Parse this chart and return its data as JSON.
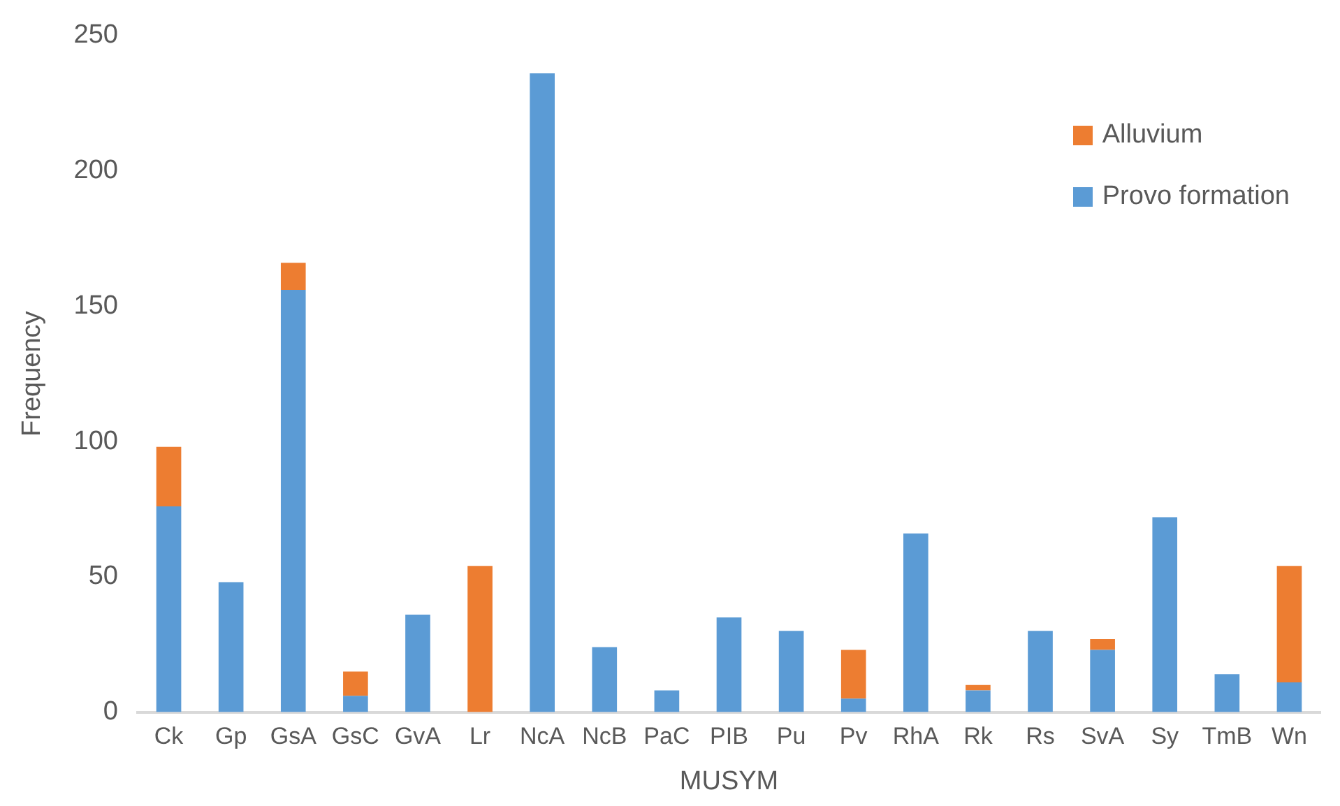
{
  "chart_data": {
    "type": "bar",
    "stacked": true,
    "xlabel": "MUSYM",
    "ylabel": "Frequency",
    "categories": [
      "Ck",
      "Gp",
      "GsA",
      "GsC",
      "GvA",
      "Lr",
      "NcA",
      "NcB",
      "PaC",
      "PIB",
      "Pu",
      "Pv",
      "RhA",
      "Rk",
      "Rs",
      "SvA",
      "Sy",
      "TmB",
      "Wn"
    ],
    "series": [
      {
        "name": "Provo formation",
        "color": "#5b9bd5",
        "values": [
          76,
          48,
          156,
          6,
          36,
          0,
          236,
          24,
          8,
          35,
          30,
          5,
          66,
          8,
          30,
          23,
          72,
          14,
          11
        ]
      },
      {
        "name": "Alluvium",
        "color": "#ed7d31",
        "values": [
          22,
          0,
          10,
          9,
          0,
          54,
          0,
          0,
          0,
          0,
          0,
          18,
          0,
          2,
          0,
          4,
          0,
          0,
          43
        ]
      }
    ],
    "ylim": [
      0,
      250
    ],
    "yticks": [
      0,
      50,
      100,
      150,
      200,
      250
    ],
    "grid": false,
    "legend": "top right"
  }
}
